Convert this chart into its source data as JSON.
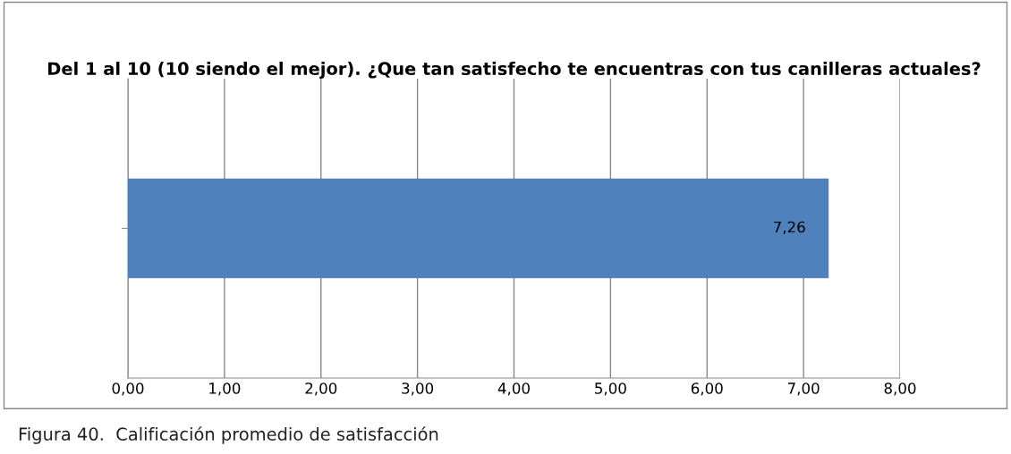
{
  "chart_data": {
    "type": "bar",
    "orientation": "horizontal",
    "title": "Del 1 al 10 (10 siendo el mejor). ¿Que tan satisfecho te encuentras con tus canilleras actuales?",
    "categories": [
      null
    ],
    "values": [
      7.26
    ],
    "value_labels": [
      "7,26"
    ],
    "color": "#4f81bd",
    "xlim": [
      0,
      8
    ],
    "xticks": [
      {
        "value": 0,
        "label": "0,00"
      },
      {
        "value": 1,
        "label": "1,00"
      },
      {
        "value": 2,
        "label": "2,00"
      },
      {
        "value": 3,
        "label": "3,00"
      },
      {
        "value": 4,
        "label": "4,00"
      },
      {
        "value": 5,
        "label": "5,00"
      },
      {
        "value": 6,
        "label": "6,00"
      },
      {
        "value": 7,
        "label": "7,00"
      },
      {
        "value": 8,
        "label": "8,00"
      }
    ],
    "grid": "x",
    "annotations": [
      "Figura 40.  Calificación promedio de satisfacción"
    ]
  }
}
